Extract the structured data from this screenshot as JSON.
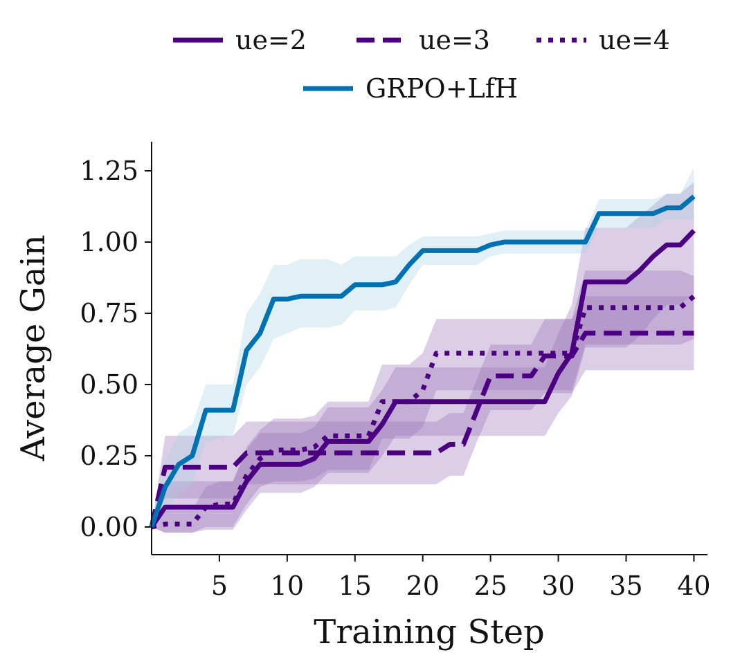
{
  "chart_data": {
    "type": "line",
    "xlabel": "Training Step",
    "ylabel": "Average Gain",
    "xlim": [
      0,
      41
    ],
    "ylim": [
      -0.1,
      1.35
    ],
    "xticks": [
      5,
      10,
      15,
      20,
      25,
      30,
      35,
      40
    ],
    "yticks": [
      0.0,
      0.25,
      0.5,
      0.75,
      1.0,
      1.25
    ],
    "xtick_labels": [
      "5",
      "10",
      "15",
      "20",
      "25",
      "30",
      "35",
      "40"
    ],
    "ytick_labels": [
      "0.00",
      "0.25",
      "0.50",
      "0.75",
      "1.00",
      "1.25"
    ],
    "legend_position": "top-center",
    "grid": false,
    "series": [
      {
        "name": "ue=2",
        "color": "#4b0082",
        "dash": "solid",
        "band": "#9b72b8",
        "x": [
          0,
          1,
          2,
          3,
          4,
          5,
          6,
          7,
          8,
          9,
          10,
          11,
          12,
          13,
          14,
          15,
          16,
          17,
          18,
          19,
          20,
          21,
          22,
          23,
          24,
          25,
          26,
          27,
          28,
          29,
          30,
          31,
          32,
          33,
          34,
          35,
          36,
          37,
          38,
          39,
          40
        ],
        "y": [
          0.0,
          0.07,
          0.07,
          0.07,
          0.07,
          0.07,
          0.07,
          0.16,
          0.22,
          0.22,
          0.22,
          0.22,
          0.24,
          0.3,
          0.3,
          0.3,
          0.3,
          0.36,
          0.44,
          0.44,
          0.44,
          0.44,
          0.44,
          0.44,
          0.44,
          0.44,
          0.44,
          0.44,
          0.44,
          0.44,
          0.54,
          0.61,
          0.86,
          0.86,
          0.86,
          0.86,
          0.9,
          0.95,
          0.99,
          0.99,
          1.04
        ],
        "y_lower": [
          0.0,
          -0.02,
          -0.02,
          -0.02,
          -0.01,
          -0.01,
          -0.01,
          0.06,
          0.12,
          0.12,
          0.12,
          0.12,
          0.14,
          0.19,
          0.19,
          0.19,
          0.19,
          0.25,
          0.32,
          0.32,
          0.32,
          0.32,
          0.32,
          0.32,
          0.32,
          0.32,
          0.32,
          0.32,
          0.32,
          0.32,
          0.4,
          0.46,
          0.63,
          0.63,
          0.63,
          0.63,
          0.67,
          0.73,
          0.78,
          0.78,
          0.82
        ],
        "y_upper": [
          0.0,
          0.16,
          0.16,
          0.16,
          0.16,
          0.16,
          0.16,
          0.27,
          0.33,
          0.33,
          0.33,
          0.33,
          0.35,
          0.42,
          0.42,
          0.42,
          0.42,
          0.48,
          0.56,
          0.56,
          0.56,
          0.56,
          0.56,
          0.56,
          0.56,
          0.56,
          0.56,
          0.56,
          0.56,
          0.56,
          0.68,
          0.78,
          1.05,
          1.05,
          1.05,
          1.05,
          1.09,
          1.13,
          1.17,
          1.17,
          1.21
        ]
      },
      {
        "name": "ue=3",
        "color": "#4b0082",
        "dash": "dashed",
        "band": "#9b72b8",
        "x": [
          0,
          1,
          2,
          3,
          4,
          5,
          6,
          7,
          8,
          9,
          10,
          11,
          12,
          13,
          14,
          15,
          16,
          17,
          18,
          19,
          20,
          21,
          22,
          23,
          24,
          25,
          26,
          27,
          28,
          29,
          30,
          31,
          32,
          33,
          34,
          35,
          36,
          37,
          38,
          39,
          40
        ],
        "y": [
          0.0,
          0.21,
          0.21,
          0.21,
          0.21,
          0.21,
          0.21,
          0.26,
          0.26,
          0.26,
          0.26,
          0.26,
          0.26,
          0.26,
          0.26,
          0.26,
          0.26,
          0.26,
          0.26,
          0.26,
          0.26,
          0.26,
          0.29,
          0.29,
          0.41,
          0.53,
          0.53,
          0.53,
          0.53,
          0.6,
          0.6,
          0.6,
          0.68,
          0.68,
          0.68,
          0.68,
          0.68,
          0.68,
          0.68,
          0.68,
          0.68
        ],
        "y_lower": [
          0.0,
          0.1,
          0.1,
          0.1,
          0.1,
          0.1,
          0.1,
          0.15,
          0.15,
          0.15,
          0.15,
          0.15,
          0.15,
          0.15,
          0.15,
          0.15,
          0.15,
          0.15,
          0.15,
          0.15,
          0.15,
          0.15,
          0.18,
          0.18,
          0.3,
          0.41,
          0.41,
          0.41,
          0.41,
          0.47,
          0.47,
          0.47,
          0.55,
          0.55,
          0.55,
          0.55,
          0.55,
          0.55,
          0.55,
          0.55,
          0.55
        ],
        "y_upper": [
          0.0,
          0.32,
          0.32,
          0.32,
          0.32,
          0.32,
          0.32,
          0.37,
          0.37,
          0.37,
          0.37,
          0.37,
          0.37,
          0.37,
          0.37,
          0.37,
          0.37,
          0.37,
          0.37,
          0.37,
          0.37,
          0.37,
          0.4,
          0.4,
          0.52,
          0.64,
          0.64,
          0.64,
          0.64,
          0.73,
          0.73,
          0.73,
          0.81,
          0.81,
          0.81,
          0.81,
          0.81,
          0.81,
          0.81,
          0.81,
          0.81
        ]
      },
      {
        "name": "ue=4",
        "color": "#4b0082",
        "dash": "dotted",
        "band": "#9b72b8",
        "x": [
          0,
          1,
          2,
          3,
          4,
          5,
          6,
          7,
          8,
          9,
          10,
          11,
          12,
          13,
          14,
          15,
          16,
          17,
          18,
          19,
          20,
          21,
          22,
          23,
          24,
          25,
          26,
          27,
          28,
          29,
          30,
          31,
          32,
          33,
          34,
          35,
          36,
          37,
          38,
          39,
          40
        ],
        "y": [
          0.0,
          0.01,
          0.01,
          0.01,
          0.07,
          0.08,
          0.08,
          0.18,
          0.24,
          0.27,
          0.27,
          0.27,
          0.28,
          0.32,
          0.32,
          0.32,
          0.32,
          0.44,
          0.44,
          0.44,
          0.48,
          0.61,
          0.61,
          0.61,
          0.61,
          0.61,
          0.61,
          0.61,
          0.61,
          0.61,
          0.61,
          0.61,
          0.77,
          0.77,
          0.77,
          0.77,
          0.77,
          0.77,
          0.77,
          0.77,
          0.81
        ],
        "y_lower": [
          0.0,
          -0.02,
          -0.02,
          -0.02,
          0.0,
          0.0,
          0.0,
          0.08,
          0.14,
          0.16,
          0.16,
          0.16,
          0.17,
          0.2,
          0.2,
          0.2,
          0.2,
          0.31,
          0.31,
          0.31,
          0.35,
          0.48,
          0.48,
          0.48,
          0.48,
          0.48,
          0.48,
          0.48,
          0.48,
          0.48,
          0.48,
          0.48,
          0.64,
          0.64,
          0.64,
          0.64,
          0.64,
          0.64,
          0.64,
          0.64,
          0.66
        ],
        "y_upper": [
          0.0,
          0.06,
          0.06,
          0.06,
          0.14,
          0.16,
          0.16,
          0.28,
          0.34,
          0.38,
          0.38,
          0.38,
          0.39,
          0.44,
          0.44,
          0.44,
          0.44,
          0.57,
          0.57,
          0.57,
          0.61,
          0.73,
          0.73,
          0.73,
          0.73,
          0.73,
          0.73,
          0.73,
          0.73,
          0.73,
          0.73,
          0.73,
          0.9,
          0.9,
          0.9,
          0.9,
          0.9,
          0.9,
          0.9,
          0.9,
          0.88
        ]
      },
      {
        "name": "GRPO+LfH",
        "color": "#0072b2",
        "dash": "solid",
        "band": "#a9d0e6",
        "x": [
          0,
          1,
          2,
          3,
          4,
          5,
          6,
          7,
          8,
          9,
          10,
          11,
          12,
          13,
          14,
          15,
          16,
          17,
          18,
          19,
          20,
          21,
          22,
          23,
          24,
          25,
          26,
          27,
          28,
          29,
          30,
          31,
          32,
          33,
          34,
          35,
          36,
          37,
          38,
          39,
          40
        ],
        "y": [
          0.0,
          0.14,
          0.22,
          0.25,
          0.41,
          0.41,
          0.41,
          0.62,
          0.68,
          0.8,
          0.8,
          0.81,
          0.81,
          0.81,
          0.81,
          0.85,
          0.85,
          0.85,
          0.86,
          0.92,
          0.97,
          0.97,
          0.97,
          0.97,
          0.97,
          0.99,
          1.0,
          1.0,
          1.0,
          1.0,
          1.0,
          1.0,
          1.0,
          1.1,
          1.1,
          1.1,
          1.1,
          1.1,
          1.12,
          1.12,
          1.16
        ],
        "y_lower": [
          0.0,
          0.05,
          0.12,
          0.15,
          0.3,
          0.31,
          0.32,
          0.5,
          0.56,
          0.66,
          0.68,
          0.7,
          0.7,
          0.7,
          0.71,
          0.76,
          0.76,
          0.76,
          0.77,
          0.85,
          0.92,
          0.92,
          0.92,
          0.92,
          0.92,
          0.95,
          0.96,
          0.96,
          0.96,
          0.96,
          0.96,
          0.96,
          0.96,
          1.05,
          1.05,
          1.05,
          1.05,
          1.05,
          1.08,
          1.08,
          1.08
        ],
        "y_upper": [
          0.0,
          0.23,
          0.33,
          0.36,
          0.5,
          0.5,
          0.5,
          0.75,
          0.82,
          0.92,
          0.92,
          0.94,
          0.94,
          0.94,
          0.92,
          0.95,
          0.95,
          0.95,
          0.95,
          0.99,
          1.02,
          1.02,
          1.02,
          1.02,
          1.02,
          1.03,
          1.04,
          1.04,
          1.04,
          1.04,
          1.04,
          1.04,
          1.04,
          1.15,
          1.15,
          1.15,
          1.15,
          1.15,
          1.17,
          1.17,
          1.26
        ]
      }
    ]
  }
}
